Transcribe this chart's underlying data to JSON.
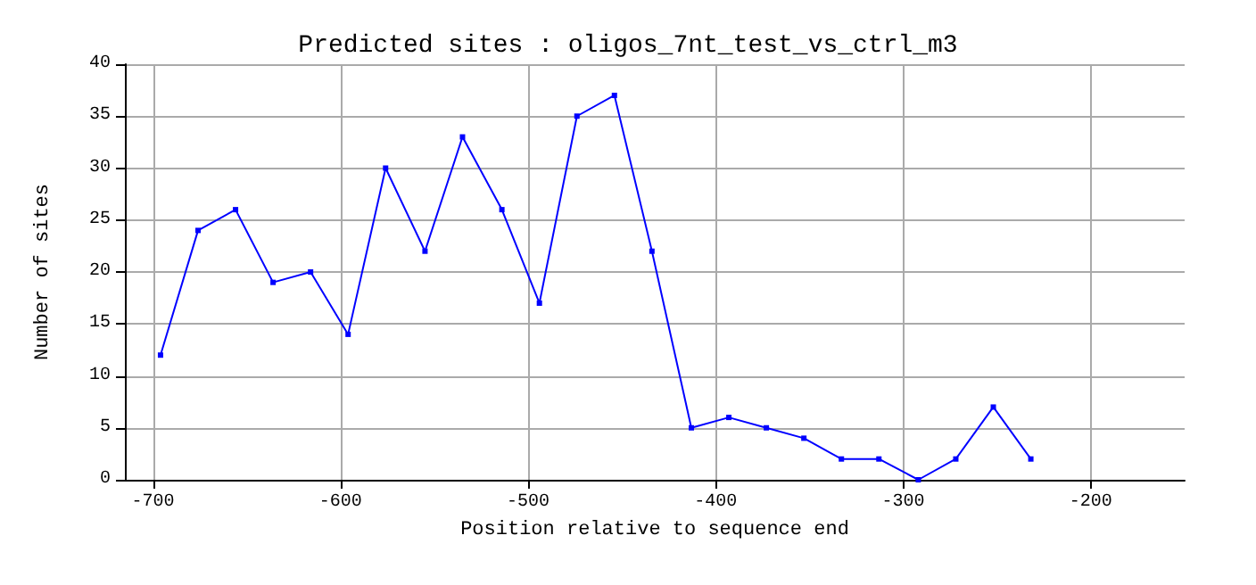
{
  "chart_data": {
    "type": "line",
    "title": "Predicted sites : oligos_7nt_test_vs_ctrl_m3",
    "xlabel": "Position relative to sequence end",
    "ylabel": "Number of sites",
    "x": [
      -696,
      -676,
      -656,
      -636,
      -616,
      -596,
      -576,
      -555,
      -535,
      -514,
      -494,
      -474,
      -454,
      -434,
      -413,
      -393,
      -373,
      -353,
      -333,
      -313,
      -292,
      -272,
      -252,
      -232
    ],
    "series": [
      {
        "color": "#0000ff",
        "values": [
          12,
          24,
          26,
          19,
          20,
          14,
          30,
          22,
          33,
          26,
          17,
          35,
          37,
          22,
          5,
          6,
          5,
          4,
          2,
          2,
          0,
          2,
          7,
          2
        ]
      }
    ],
    "xlim": [
      -715,
      -150
    ],
    "xticks": [
      -700,
      -600,
      -500,
      -400,
      -300,
      -200
    ],
    "ylim": [
      0,
      40
    ],
    "yticks": [
      0,
      5,
      10,
      15,
      20,
      25,
      30,
      35,
      40
    ],
    "grid": true,
    "marker": "square",
    "line_style": "solid"
  }
}
